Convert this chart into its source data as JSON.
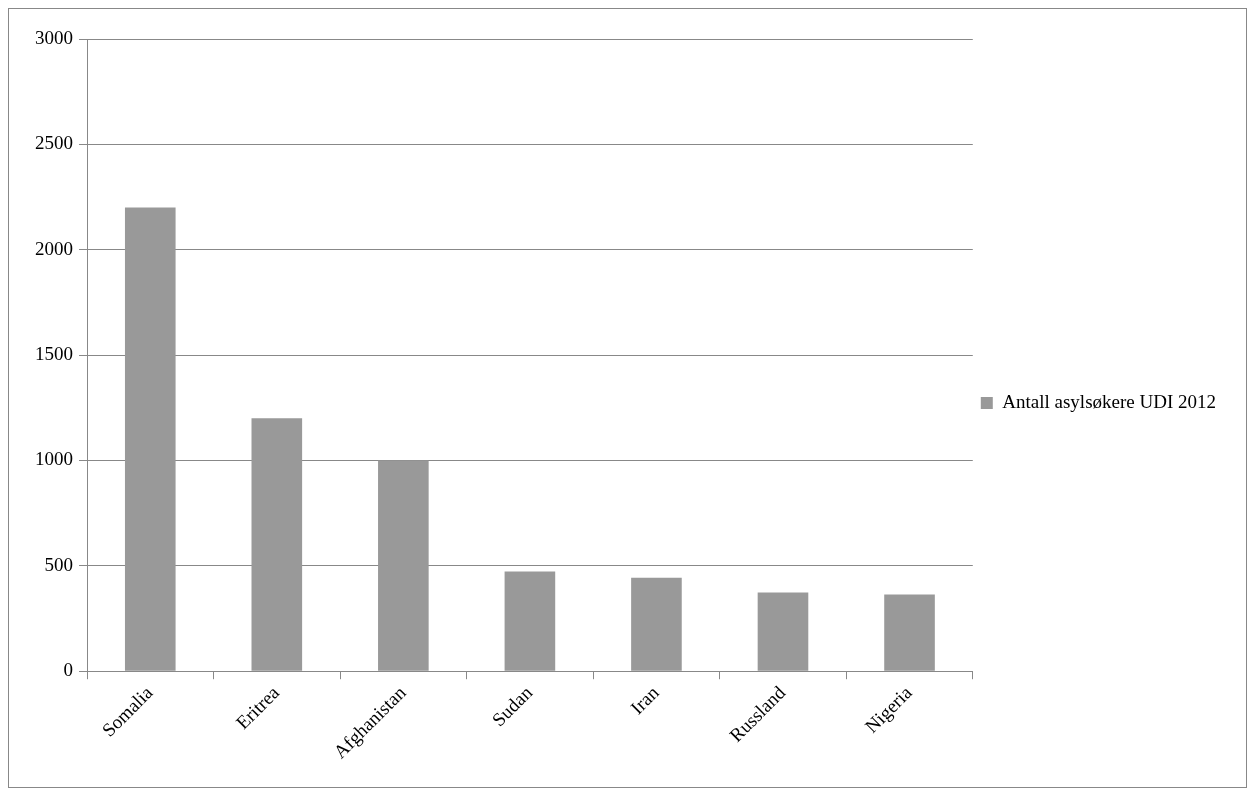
{
  "chart_data": {
    "type": "bar",
    "categories": [
      "Somalia",
      "Eritrea",
      "Afghanistan",
      "Sudan",
      "Iran",
      "Russland",
      "Nigeria"
    ],
    "series": [
      {
        "name": "Antall asylsøkere UDI 2012",
        "color": "#999999",
        "values": [
          2200,
          1200,
          1000,
          473,
          443,
          374,
          364
        ]
      }
    ],
    "ylim": [
      0,
      3000
    ],
    "yticks": [
      0,
      500,
      1000,
      1500,
      2000,
      2500,
      3000
    ],
    "grid": "y",
    "legend": "right"
  }
}
